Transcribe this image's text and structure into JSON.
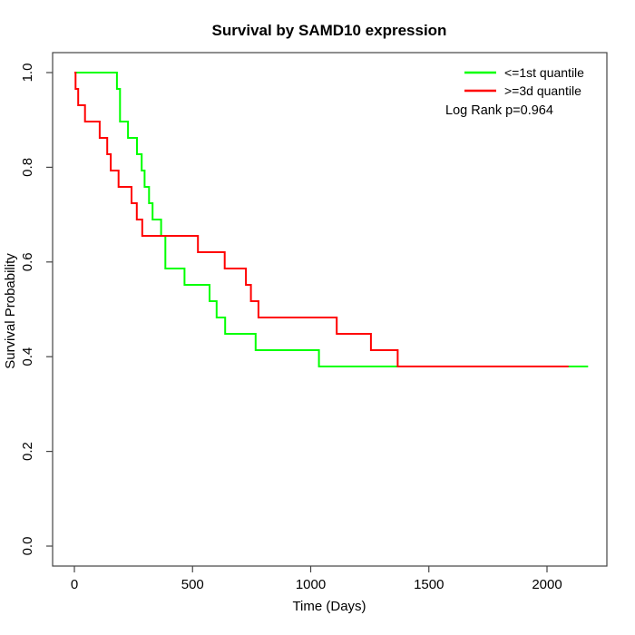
{
  "chart_data": {
    "type": "line",
    "variant": "kaplan-meier-step",
    "title": "Survival by SAMD10 expression",
    "xlabel": "Time (Days)",
    "ylabel": "Survival Probability",
    "xticks": [
      0,
      500,
      1000,
      1500,
      2000
    ],
    "yticks": [
      "0.0",
      "0.2",
      "0.4",
      "0.6",
      "0.8",
      "1.0"
    ],
    "xlim": [
      0,
      2200
    ],
    "ylim": [
      0.0,
      1.0
    ],
    "grid": false,
    "legend_position": "topright",
    "log_rank_label": "Log Rank p=0.964",
    "axis_color": "#444444",
    "series": [
      {
        "name": "<=1st quantile",
        "color": "#00ff00",
        "end_time": 2174,
        "steps": [
          [
            0,
            1.0
          ],
          [
            180,
            0.9655
          ],
          [
            193,
            0.8966
          ],
          [
            227,
            0.8621
          ],
          [
            265,
            0.8276
          ],
          [
            285,
            0.7931
          ],
          [
            297,
            0.7586
          ],
          [
            316,
            0.7241
          ],
          [
            331,
            0.6897
          ],
          [
            367,
            0.6552
          ],
          [
            385,
            0.5862
          ],
          [
            466,
            0.5517
          ],
          [
            572,
            0.5172
          ],
          [
            602,
            0.4828
          ],
          [
            638,
            0.4483
          ],
          [
            767,
            0.4138
          ],
          [
            1035,
            0.3793
          ]
        ]
      },
      {
        "name": ">=3d quantile",
        "color": "#ff0000",
        "end_time": 2091,
        "steps": [
          [
            0,
            1.0
          ],
          [
            5,
            0.9655
          ],
          [
            16,
            0.931
          ],
          [
            45,
            0.8966
          ],
          [
            107,
            0.8621
          ],
          [
            139,
            0.8276
          ],
          [
            154,
            0.7931
          ],
          [
            187,
            0.7586
          ],
          [
            242,
            0.7241
          ],
          [
            264,
            0.6897
          ],
          [
            287,
            0.6552
          ],
          [
            523,
            0.6207
          ],
          [
            636,
            0.5862
          ],
          [
            726,
            0.5517
          ],
          [
            747,
            0.5172
          ],
          [
            779,
            0.4828
          ],
          [
            1110,
            0.4483
          ],
          [
            1255,
            0.4138
          ],
          [
            1368,
            0.3793
          ]
        ]
      }
    ]
  }
}
